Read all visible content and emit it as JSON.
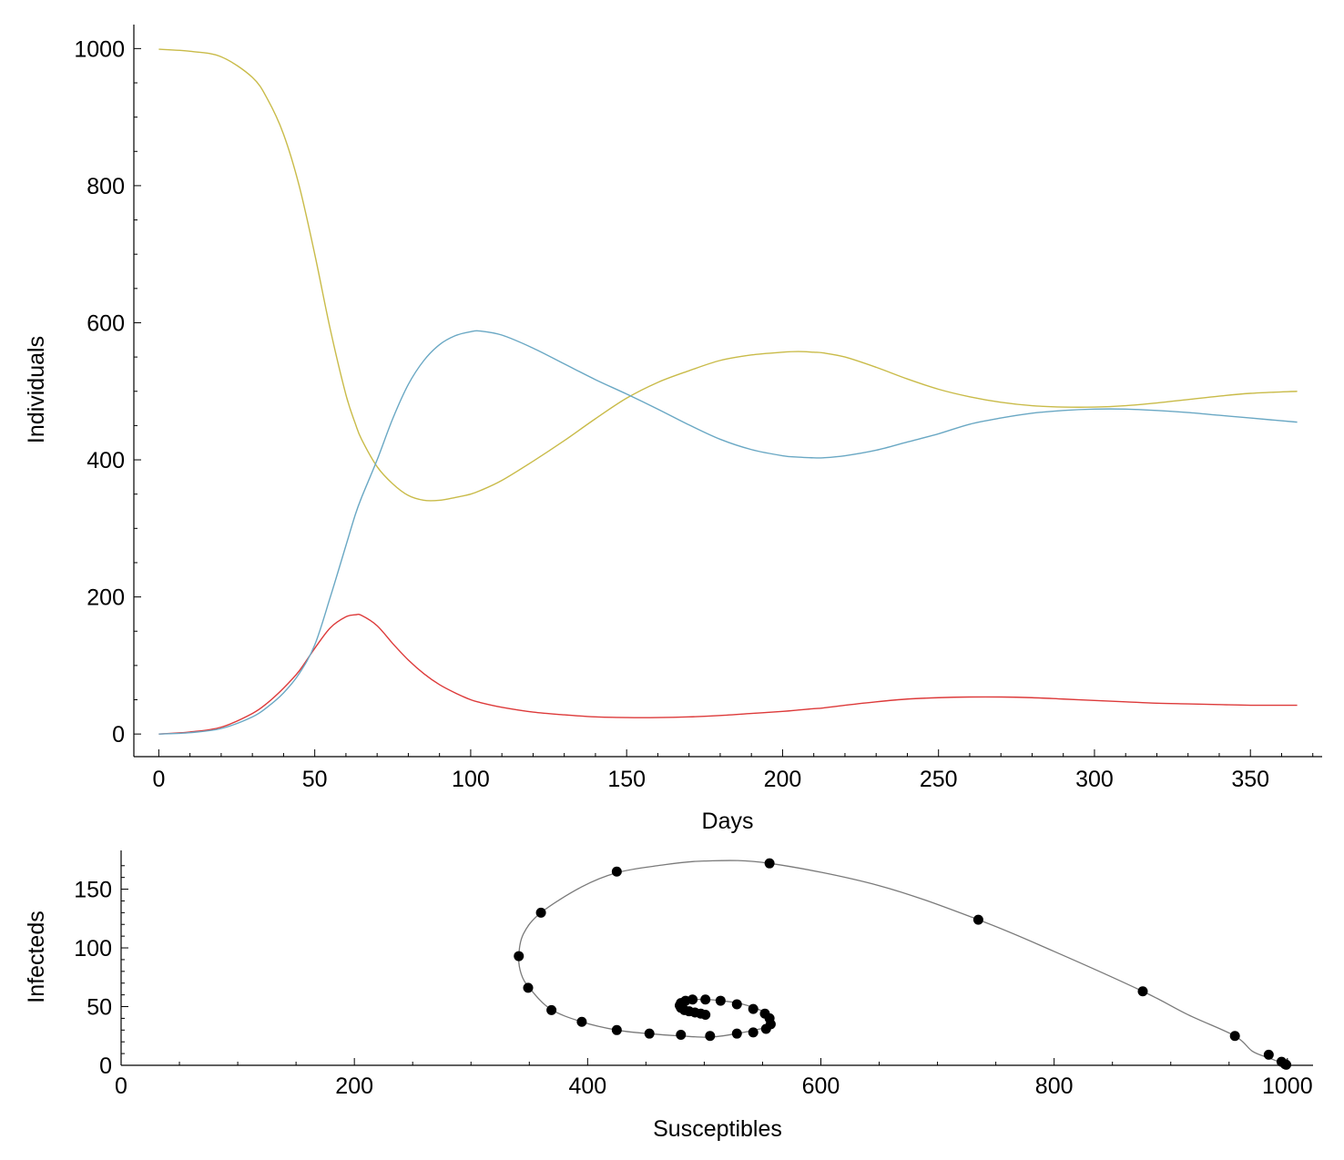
{
  "colors": {
    "susceptibles": "#c9bb49",
    "infecteds": "#dd3a3a",
    "recovereds": "#6aa8c4",
    "phase_line": "#7a7a7a",
    "phase_points": "#000000"
  },
  "chart_data": [
    {
      "type": "line",
      "title": "",
      "xlabel": "Days",
      "ylabel": "Individuals",
      "xlim": [
        -8,
        373
      ],
      "ylim": [
        -33,
        1035
      ],
      "xticks": [
        0,
        50,
        100,
        150,
        200,
        250,
        300,
        350
      ],
      "yticks": [
        0,
        200,
        400,
        600,
        800,
        1000
      ],
      "xtick_labels": [
        "0",
        "50",
        "100",
        "150",
        "200",
        "250",
        "300",
        "350"
      ],
      "ytick_labels": [
        "0",
        "200",
        "400",
        "600",
        "800",
        "1000"
      ],
      "x": [
        0,
        10,
        20,
        30,
        35,
        40,
        45,
        50,
        55,
        60,
        63,
        65,
        70,
        75,
        80,
        85,
        90,
        95,
        100,
        103,
        110,
        120,
        130,
        140,
        150,
        160,
        170,
        180,
        190,
        200,
        205,
        210,
        213,
        220,
        230,
        240,
        250,
        260,
        270,
        280,
        290,
        300,
        310,
        320,
        330,
        340,
        350,
        365
      ],
      "series": [
        {
          "color_key": "susceptibles",
          "values": [
            999,
            996,
            988,
            958,
            925,
            875,
            800,
            700,
            590,
            495,
            453,
            430,
            390,
            365,
            348,
            341,
            341,
            345,
            350,
            355,
            370,
            398,
            428,
            460,
            490,
            513,
            530,
            545,
            553,
            557,
            558,
            557,
            556,
            550,
            535,
            518,
            503,
            492,
            484,
            479,
            477,
            477,
            479,
            483,
            488,
            493,
            497,
            500
          ]
        },
        {
          "color_key": "infecteds",
          "values": [
            0,
            3,
            10,
            30,
            46,
            67,
            92,
            125,
            155,
            171,
            174,
            173,
            158,
            132,
            108,
            88,
            72,
            60,
            50,
            46,
            39,
            32,
            28,
            25,
            24,
            24,
            25,
            27,
            30,
            33,
            35,
            37,
            38,
            42,
            47,
            51,
            53,
            54,
            54,
            53,
            51,
            49,
            47,
            45,
            44,
            43,
            42,
            42
          ]
        },
        {
          "color_key": "recovereds",
          "values": [
            0,
            2,
            8,
            25,
            40,
            60,
            88,
            130,
            200,
            275,
            320,
            345,
            400,
            460,
            510,
            545,
            568,
            581,
            587,
            588,
            582,
            563,
            540,
            517,
            496,
            474,
            451,
            430,
            415,
            406,
            404,
            403,
            403,
            406,
            414,
            426,
            438,
            452,
            461,
            468,
            472,
            474,
            474,
            472,
            469,
            465,
            461,
            455
          ]
        }
      ]
    },
    {
      "type": "scatter",
      "title": "",
      "xlabel": "Susceptibles",
      "ylabel": "Infecteds",
      "xlim": [
        0,
        1022
      ],
      "ylim": [
        0,
        183
      ],
      "xticks": [
        0,
        200,
        400,
        600,
        800,
        1000
      ],
      "yticks": [
        0,
        50,
        100,
        150
      ],
      "xtick_labels": [
        "0",
        "200",
        "400",
        "600",
        "800",
        "1000"
      ],
      "ytick_labels": [
        "0",
        "50",
        "100",
        "150"
      ],
      "curve": {
        "x": [
          999,
          995,
          985,
          970,
          955,
          915,
          876,
          800,
          735,
          650,
          556,
          500,
          460,
          425,
          395,
          360,
          345,
          341,
          343,
          350,
          368,
          395,
          425,
          452,
          480,
          505,
          528,
          548,
          556,
          558,
          557,
          555,
          548,
          540,
          529,
          515,
          503,
          493,
          485,
          480,
          479,
          481,
          485,
          490,
          495,
          500
        ],
        "y": [
          0.5,
          2,
          6,
          12,
          25,
          43,
          63,
          97,
          124,
          153,
          172,
          174,
          170,
          164,
          152,
          130,
          112,
          93,
          78,
          66,
          48,
          37,
          30,
          27,
          25,
          24,
          27,
          31,
          33,
          38,
          40,
          44,
          47,
          50,
          53,
          55,
          56,
          56,
          54,
          52,
          49,
          47,
          44,
          43,
          42,
          42
        ]
      },
      "points": [
        {
          "x": 999,
          "y": 0.5
        },
        {
          "x": 998,
          "y": 1
        },
        {
          "x": 995,
          "y": 3
        },
        {
          "x": 984,
          "y": 9
        },
        {
          "x": 955,
          "y": 25
        },
        {
          "x": 876,
          "y": 63
        },
        {
          "x": 735,
          "y": 124
        },
        {
          "x": 556,
          "y": 172
        },
        {
          "x": 425,
          "y": 165
        },
        {
          "x": 360,
          "y": 130
        },
        {
          "x": 341,
          "y": 93
        },
        {
          "x": 349,
          "y": 66
        },
        {
          "x": 369,
          "y": 47
        },
        {
          "x": 395,
          "y": 37
        },
        {
          "x": 425,
          "y": 30
        },
        {
          "x": 453,
          "y": 27
        },
        {
          "x": 480,
          "y": 26
        },
        {
          "x": 505,
          "y": 25
        },
        {
          "x": 528,
          "y": 27
        },
        {
          "x": 542,
          "y": 28
        },
        {
          "x": 553,
          "y": 31
        },
        {
          "x": 557,
          "y": 35
        },
        {
          "x": 556,
          "y": 40
        },
        {
          "x": 552,
          "y": 44
        },
        {
          "x": 542,
          "y": 48
        },
        {
          "x": 528,
          "y": 52
        },
        {
          "x": 514,
          "y": 55
        },
        {
          "x": 501,
          "y": 56
        },
        {
          "x": 490,
          "y": 56
        },
        {
          "x": 484,
          "y": 55
        },
        {
          "x": 480,
          "y": 53
        },
        {
          "x": 479,
          "y": 51
        },
        {
          "x": 480,
          "y": 49
        },
        {
          "x": 483,
          "y": 47
        },
        {
          "x": 487,
          "y": 46
        },
        {
          "x": 492,
          "y": 45
        },
        {
          "x": 497,
          "y": 44
        },
        {
          "x": 501,
          "y": 43
        }
      ]
    }
  ]
}
